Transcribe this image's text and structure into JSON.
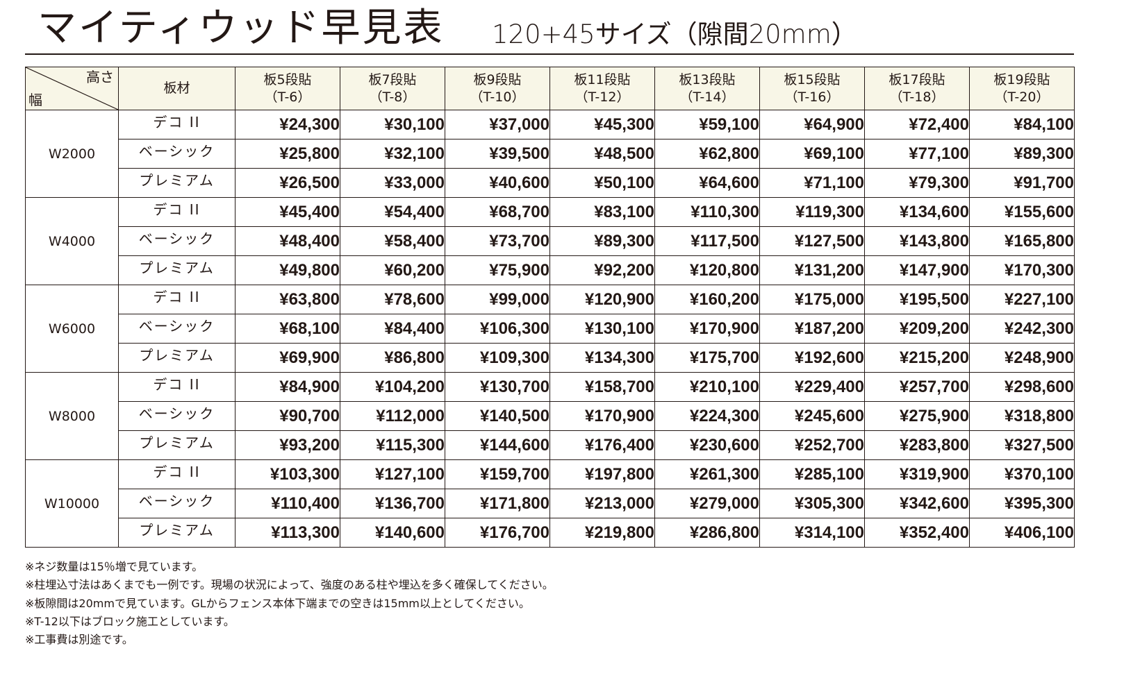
{
  "header": {
    "title": "マイティウッド早見表",
    "subtitle": "120+45サイズ（隙間20mm）"
  },
  "table": {
    "corner": {
      "top_label": "高さ",
      "bottom_label": "幅"
    },
    "material_header": "板材",
    "columns": [
      {
        "label": "板5段貼",
        "code": "（T-6）"
      },
      {
        "label": "板7段貼",
        "code": "（T-8）"
      },
      {
        "label": "板9段貼",
        "code": "（T-10）"
      },
      {
        "label": "板11段貼",
        "code": "（T-12）"
      },
      {
        "label": "板13段貼",
        "code": "（T-14）"
      },
      {
        "label": "板15段貼",
        "code": "（T-16）"
      },
      {
        "label": "板17段貼",
        "code": "（T-18）"
      },
      {
        "label": "板19段貼",
        "code": "（T-20）"
      }
    ],
    "groups": [
      {
        "width": "W2000",
        "rows": [
          {
            "material": "デコ II",
            "prices": [
              "¥24,300",
              "¥30,100",
              "¥37,000",
              "¥45,300",
              "¥59,100",
              "¥64,900",
              "¥72,400",
              "¥84,100"
            ]
          },
          {
            "material": "ベーシック",
            "prices": [
              "¥25,800",
              "¥32,100",
              "¥39,500",
              "¥48,500",
              "¥62,800",
              "¥69,100",
              "¥77,100",
              "¥89,300"
            ]
          },
          {
            "material": "プレミアム",
            "prices": [
              "¥26,500",
              "¥33,000",
              "¥40,600",
              "¥50,100",
              "¥64,600",
              "¥71,100",
              "¥79,300",
              "¥91,700"
            ]
          }
        ]
      },
      {
        "width": "W4000",
        "rows": [
          {
            "material": "デコ II",
            "prices": [
              "¥45,400",
              "¥54,400",
              "¥68,700",
              "¥83,100",
              "¥110,300",
              "¥119,300",
              "¥134,600",
              "¥155,600"
            ]
          },
          {
            "material": "ベーシック",
            "prices": [
              "¥48,400",
              "¥58,400",
              "¥73,700",
              "¥89,300",
              "¥117,500",
              "¥127,500",
              "¥143,800",
              "¥165,800"
            ]
          },
          {
            "material": "プレミアム",
            "prices": [
              "¥49,800",
              "¥60,200",
              "¥75,900",
              "¥92,200",
              "¥120,800",
              "¥131,200",
              "¥147,900",
              "¥170,300"
            ]
          }
        ]
      },
      {
        "width": "W6000",
        "rows": [
          {
            "material": "デコ II",
            "prices": [
              "¥63,800",
              "¥78,600",
              "¥99,000",
              "¥120,900",
              "¥160,200",
              "¥175,000",
              "¥195,500",
              "¥227,100"
            ]
          },
          {
            "material": "ベーシック",
            "prices": [
              "¥68,100",
              "¥84,400",
              "¥106,300",
              "¥130,100",
              "¥170,900",
              "¥187,200",
              "¥209,200",
              "¥242,300"
            ]
          },
          {
            "material": "プレミアム",
            "prices": [
              "¥69,900",
              "¥86,800",
              "¥109,300",
              "¥134,300",
              "¥175,700",
              "¥192,600",
              "¥215,200",
              "¥248,900"
            ]
          }
        ]
      },
      {
        "width": "W8000",
        "rows": [
          {
            "material": "デコ II",
            "prices": [
              "¥84,900",
              "¥104,200",
              "¥130,700",
              "¥158,700",
              "¥210,100",
              "¥229,400",
              "¥257,700",
              "¥298,600"
            ]
          },
          {
            "material": "ベーシック",
            "prices": [
              "¥90,700",
              "¥112,000",
              "¥140,500",
              "¥170,900",
              "¥224,300",
              "¥245,600",
              "¥275,900",
              "¥318,800"
            ]
          },
          {
            "material": "プレミアム",
            "prices": [
              "¥93,200",
              "¥115,300",
              "¥144,600",
              "¥176,400",
              "¥230,600",
              "¥252,700",
              "¥283,800",
              "¥327,500"
            ]
          }
        ]
      },
      {
        "width": "W10000",
        "rows": [
          {
            "material": "デコ II",
            "prices": [
              "¥103,300",
              "¥127,100",
              "¥159,700",
              "¥197,800",
              "¥261,300",
              "¥285,100",
              "¥319,900",
              "¥370,100"
            ]
          },
          {
            "material": "ベーシック",
            "prices": [
              "¥110,400",
              "¥136,700",
              "¥171,800",
              "¥213,000",
              "¥279,000",
              "¥305,300",
              "¥342,600",
              "¥395,300"
            ]
          },
          {
            "material": "プレミアム",
            "prices": [
              "¥113,300",
              "¥140,600",
              "¥176,700",
              "¥219,800",
              "¥286,800",
              "¥314,100",
              "¥352,400",
              "¥406,100"
            ]
          }
        ]
      }
    ]
  },
  "notes": [
    "※ネジ数量は15％増で見ています。",
    "※柱埋込寸法はあくまでも一例です。現場の状況によって、強度のある柱や埋込を多く確保してください。",
    "※板隙間は20mmで見ています。GLからフェンス本体下端までの空きは15mm以上としてください。",
    "※T-12以下はブロック施工としています。",
    "※工事費は別途です。"
  ],
  "colors": {
    "text": "#231815",
    "header_background": "#f8f6e7",
    "border": "#231815"
  }
}
